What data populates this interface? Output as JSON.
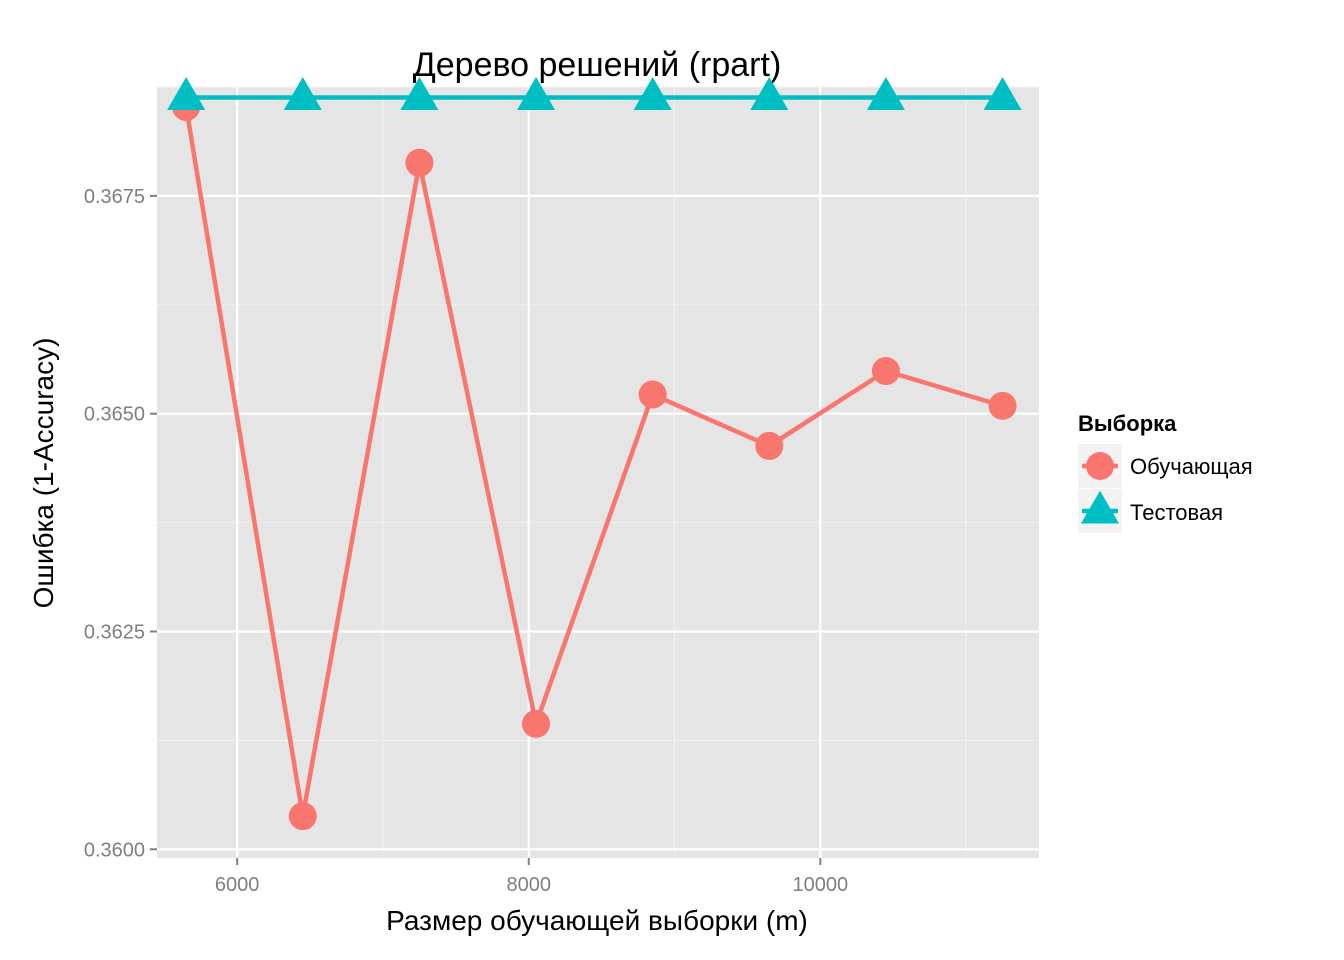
{
  "chart_data": {
    "type": "line",
    "title": "Дерево решений (rpart)",
    "xlabel": "Размер обучающей выборки (m)",
    "ylabel": "Ошибка (1-Accuracy)",
    "xlim": [
      5450,
      11500
    ],
    "ylim": [
      0.3599,
      0.36875
    ],
    "x_ticks": [
      6000,
      8000,
      10000
    ],
    "x_tick_labels": [
      "6000",
      "8000",
      "10000"
    ],
    "y_ticks": [
      0.36,
      0.3625,
      0.365,
      0.3675
    ],
    "y_tick_labels": [
      "0.3600",
      "0.3625",
      "0.3650",
      "0.3675"
    ],
    "grid": true,
    "legend_position": "right",
    "legend_title": "Выборка",
    "x": [
      5650,
      6450,
      7250,
      8050,
      8850,
      9650,
      10450,
      11250
    ],
    "series": [
      {
        "name": "Обучающая",
        "marker": "circle",
        "color": "#F8766D",
        "values": [
          0.36852,
          0.36038,
          0.36788,
          0.36144,
          0.36522,
          0.36463,
          0.36549,
          0.36509
        ]
      },
      {
        "name": "Тестовая",
        "marker": "triangle",
        "color": "#00BFC4",
        "values": [
          0.36863,
          0.36863,
          0.36863,
          0.36863,
          0.36863,
          0.36863,
          0.36863,
          0.36863
        ]
      }
    ]
  },
  "colors": {
    "panel_background": "#E5E5E5",
    "grid_major": "#FFFFFF",
    "grid_minor": "#F2F2F2",
    "legend_key_background": "#F2F2F2"
  }
}
